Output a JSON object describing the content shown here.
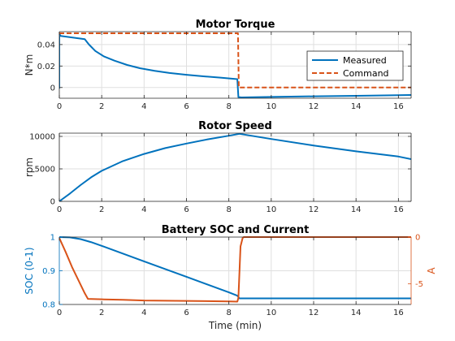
{
  "colors": {
    "blue": "#0072BD",
    "orange": "#D95319",
    "axis": "#262626",
    "grid": "#dfdfdf"
  },
  "chart_data": [
    {
      "type": "line",
      "title": "Motor Torque",
      "xlabel": "",
      "ylabel": "N*m",
      "xlim": [
        0,
        16.6
      ],
      "ylim": [
        -0.01,
        0.052
      ],
      "xticks": [
        "0",
        "2",
        "4",
        "6",
        "8",
        "10",
        "12",
        "14",
        "16"
      ],
      "yticks": [
        "0",
        "0.02",
        "0.04"
      ],
      "grid": true,
      "legend": {
        "position": "right",
        "entries": [
          "Measured",
          "Command"
        ]
      },
      "series": [
        {
          "name": "Measured",
          "style": "solid",
          "color": "#0072BD",
          "x": [
            0,
            0,
            0.06,
            1.2,
            1.4,
            1.7,
            2.1,
            2.6,
            3.2,
            3.8,
            4.5,
            5.2,
            6.0,
            6.8,
            7.6,
            8.4,
            8.45,
            8.6,
            10.0,
            12.0,
            14.0,
            16.0,
            16.6
          ],
          "y": [
            -0.001,
            0.05,
            0.048,
            0.045,
            0.04,
            0.034,
            0.029,
            0.025,
            0.021,
            0.018,
            0.0155,
            0.0135,
            0.0118,
            0.0104,
            0.0092,
            0.0078,
            -0.009,
            -0.0092,
            -0.0088,
            -0.0082,
            -0.0077,
            -0.0072,
            -0.007
          ]
        },
        {
          "name": "Command",
          "style": "dashed",
          "color": "#D95319",
          "x": [
            0,
            8.43,
            8.47,
            16.6
          ],
          "y": [
            0.0505,
            0.0505,
            0,
            0
          ]
        }
      ]
    },
    {
      "type": "line",
      "title": "Rotor Speed",
      "xlabel": "",
      "ylabel": "rpm",
      "xlim": [
        0,
        16.6
      ],
      "ylim": [
        0,
        10500
      ],
      "xticks": [
        "0",
        "2",
        "4",
        "6",
        "8",
        "10",
        "12",
        "14",
        "16"
      ],
      "yticks": [
        "0",
        "5000",
        "10000"
      ],
      "grid": true,
      "series": [
        {
          "color": "#0072BD",
          "x": [
            0,
            0.5,
            1.0,
            1.5,
            2.0,
            3.0,
            4.0,
            5.0,
            6.0,
            7.0,
            8.0,
            8.5,
            10.0,
            12.0,
            14.0,
            16.0,
            16.6
          ],
          "y": [
            0,
            1200,
            2500,
            3700,
            4700,
            6200,
            7300,
            8200,
            8900,
            9550,
            10100,
            10400,
            9600,
            8600,
            7700,
            6900,
            6500
          ]
        }
      ]
    },
    {
      "type": "line",
      "title": "Battery SOC and Current",
      "xlabel": "Time (min)",
      "ylabel": "SOC (0-1)",
      "ylabel_right": "A",
      "xlim": [
        0,
        16.6
      ],
      "ylim": [
        0.8,
        1.0
      ],
      "ylim_right": [
        -7.2,
        0
      ],
      "xticks": [
        "0",
        "2",
        "4",
        "6",
        "8",
        "10",
        "12",
        "14",
        "16"
      ],
      "yticks": [
        "0.8",
        "0.9",
        "1"
      ],
      "yticks_right": [
        "-5",
        "0"
      ],
      "grid": true,
      "series": [
        {
          "axis": "left",
          "color": "#0072BD",
          "x": [
            0,
            0.5,
            1.0,
            1.5,
            2.0,
            4.0,
            6.0,
            8.0,
            8.4,
            8.5,
            10.0,
            12.0,
            14.0,
            16.6
          ],
          "y": [
            1.0,
            0.999,
            0.994,
            0.985,
            0.974,
            0.928,
            0.882,
            0.836,
            0.826,
            0.818,
            0.818,
            0.818,
            0.818,
            0.818
          ]
        },
        {
          "axis": "right",
          "color": "#D95319",
          "x": [
            0,
            0.3,
            0.6,
            0.9,
            1.2,
            1.35,
            2.0,
            3.0,
            4.0,
            6.0,
            8.0,
            8.4,
            8.45,
            8.55,
            8.65,
            8.7,
            16.6
          ],
          "y": [
            -0.1,
            -1.6,
            -3.2,
            -4.6,
            -6.0,
            -6.6,
            -6.65,
            -6.7,
            -6.78,
            -6.82,
            -6.87,
            -6.9,
            -6.5,
            -1.0,
            -0.1,
            0,
            0
          ]
        }
      ]
    }
  ]
}
